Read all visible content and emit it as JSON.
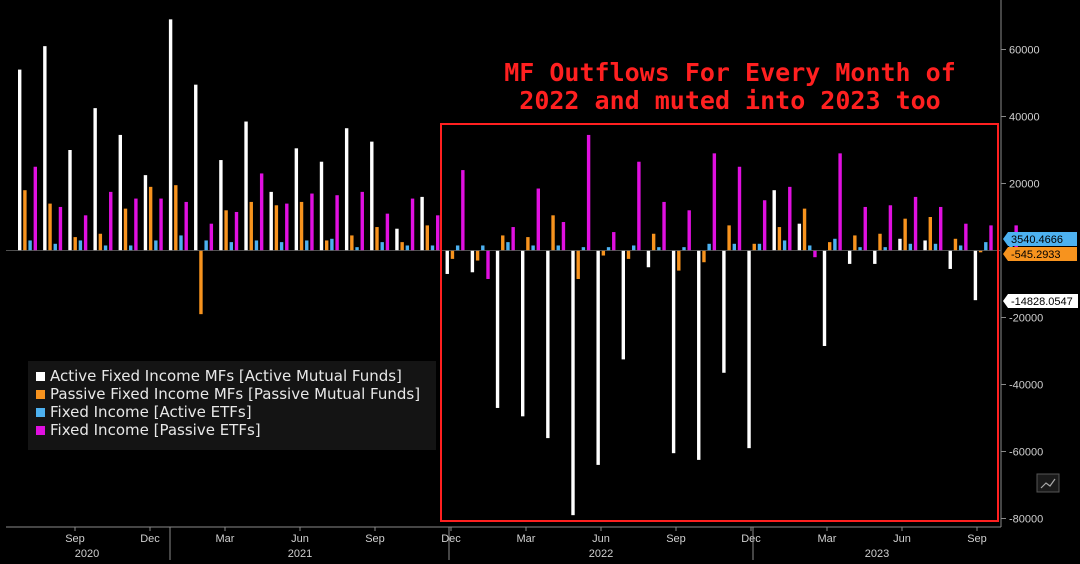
{
  "chart_data": {
    "type": "bar",
    "annotation": [
      "MF Outflows For Every Month of",
      "2022 and muted into 2023 too"
    ],
    "yticks": [
      60000,
      40000,
      20000,
      -20000,
      -40000,
      -60000,
      -80000
    ],
    "ylim": [
      -82000,
      70000
    ],
    "x_month_ticks": [
      "Sep",
      "Dec",
      "Mar",
      "Jun",
      "Sep",
      "Dec",
      "Mar",
      "Jun",
      "Sep",
      "Dec",
      "Mar",
      "Jun",
      "Sep"
    ],
    "x_year_labels": [
      "2020",
      "2021",
      "2022",
      "2023"
    ],
    "legend_position": "lower-left",
    "series": [
      {
        "name": "Active Fixed Income MFs [Active Mutual Funds]",
        "color": "#ffffff",
        "values": [
          54000,
          61000,
          30000,
          42500,
          34500,
          22500,
          69000,
          49500,
          27000,
          38500,
          17500,
          30500,
          26500,
          36500,
          32500,
          6500,
          16000,
          -7000,
          -6500,
          -47000,
          -49500,
          -56000,
          -79000,
          -64000,
          -32500,
          -5000,
          -60500,
          -62500,
          -36500,
          -59000,
          18000,
          8000,
          -28500,
          -4000,
          -4000,
          3500,
          3000,
          -5500,
          -14828
        ]
      },
      {
        "name": "Passive Fixed Income MFs [Passive Mutual Funds]",
        "color": "#f7931e",
        "values": [
          18000,
          14000,
          4000,
          5000,
          12500,
          19000,
          19500,
          -19000,
          12000,
          14500,
          13500,
          14500,
          3000,
          4500,
          7000,
          2500,
          7500,
          -2500,
          -3000,
          4500,
          4000,
          10500,
          -8500,
          -1500,
          -2500,
          5000,
          -6000,
          -3500,
          7500,
          2000,
          7000,
          12500,
          2500,
          4500,
          5000,
          9500,
          10000,
          3500,
          -545
        ]
      },
      {
        "name": "Fixed Income [Active ETFs]",
        "color": "#4db1f0",
        "values": [
          3000,
          2000,
          3000,
          1500,
          1500,
          3000,
          4500,
          3000,
          2500,
          3000,
          2500,
          3000,
          3500,
          1000,
          2500,
          1500,
          1500,
          1500,
          1500,
          2500,
          1500,
          1500,
          1000,
          1000,
          1500,
          1000,
          1000,
          2000,
          2000,
          2000,
          3000,
          1500,
          3500,
          1000,
          1000,
          2000,
          2000,
          1500,
          2500,
          3540
        ]
      },
      {
        "name": "Fixed Income [Passive ETFs]",
        "color": "#e010e0",
        "values": [
          25000,
          13000,
          10500,
          17500,
          15500,
          15500,
          14500,
          8000,
          11500,
          23000,
          14000,
          17000,
          16500,
          17500,
          11000,
          15500,
          10500,
          24000,
          -8500,
          7000,
          18500,
          8500,
          34500,
          5500,
          26500,
          14500,
          12000,
          29000,
          25000,
          15000,
          19000,
          -2000,
          29000,
          13000,
          13500,
          16000,
          13000,
          8000,
          7500,
          7500
        ]
      }
    ],
    "last_value_labels": [
      {
        "text": "3540.4666",
        "value": 3540.4666,
        "bg": "#4db1f0",
        "fg": "#000000"
      },
      {
        "text": "-545.2933",
        "value": -545.2933,
        "bg": "#f7931e",
        "fg": "#000000"
      },
      {
        "text": "-14828.0547",
        "value": -14828.0547,
        "bg": "#ffffff",
        "fg": "#000000"
      }
    ],
    "colors": {
      "background": "#000000",
      "axis": "#8a8a8a",
      "annotation": "#ff2020",
      "highlight_box": "#ff2020"
    }
  }
}
